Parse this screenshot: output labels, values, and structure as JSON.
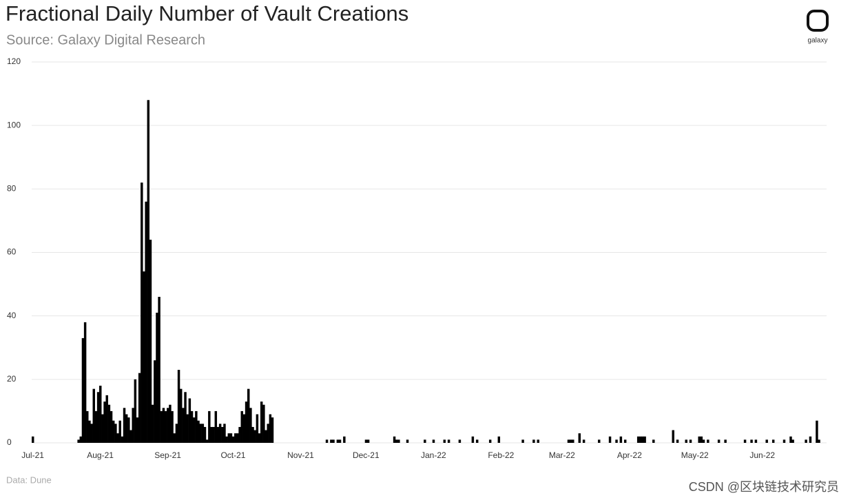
{
  "chart_data": {
    "type": "bar",
    "title": "Fractional Daily Number of Vault Creations",
    "subtitle": "Source: Galaxy Digital Research",
    "logo": "galaxy",
    "note": "Data: Dune",
    "watermark": "CSDN @区块链技术研究员",
    "color": "#000000",
    "grid": true,
    "ylim": [
      0,
      120
    ],
    "yticks": [
      0,
      20,
      40,
      60,
      80,
      100,
      120
    ],
    "categories": [
      "Jul-21",
      null,
      null,
      null,
      null,
      null,
      null,
      null,
      null,
      null,
      null,
      null,
      null,
      null,
      null,
      null,
      null,
      null,
      null,
      null,
      null,
      null,
      null,
      null,
      null,
      null,
      null,
      null,
      null,
      null,
      null,
      "Aug-21",
      null,
      null,
      null,
      null,
      null,
      null,
      null,
      null,
      null,
      null,
      null,
      null,
      null,
      null,
      null,
      null,
      null,
      null,
      null,
      null,
      null,
      null,
      null,
      null,
      null,
      null,
      null,
      null,
      null,
      null,
      "Sep-21",
      null,
      null,
      null,
      null,
      null,
      null,
      null,
      null,
      null,
      null,
      null,
      null,
      null,
      null,
      null,
      null,
      null,
      null,
      null,
      null,
      null,
      null,
      null,
      null,
      null,
      null,
      null,
      null,
      null,
      "Oct-21",
      null,
      null,
      null,
      null,
      null,
      null,
      null,
      null,
      null,
      null,
      null,
      null,
      null,
      null,
      null,
      null,
      null,
      null,
      null,
      null,
      null,
      null,
      null,
      null,
      null,
      null,
      null,
      null,
      null,
      null,
      "Nov-21",
      null,
      null,
      null,
      null,
      null,
      null,
      null,
      null,
      null,
      null,
      null,
      null,
      null,
      null,
      null,
      null,
      null,
      null,
      null,
      null,
      null,
      null,
      null,
      null,
      null,
      null,
      null,
      null,
      null,
      "Dec-21",
      null,
      null,
      null,
      null,
      null,
      null,
      null,
      null,
      null,
      null,
      null,
      null,
      null,
      null,
      null,
      null,
      null,
      null,
      null,
      null,
      null,
      null,
      null,
      null,
      null,
      null,
      null,
      null,
      null,
      null,
      "Jan-22",
      null,
      null,
      null,
      null,
      null,
      null,
      null,
      null,
      null,
      null,
      null,
      null,
      null,
      null,
      null,
      null,
      null,
      null,
      null,
      null,
      null,
      null,
      null,
      null,
      null,
      null,
      null,
      null,
      null,
      null,
      "Feb-22",
      null,
      null,
      null,
      null,
      null,
      null,
      null,
      null,
      null,
      null,
      null,
      null,
      null,
      null,
      null,
      null,
      null,
      null,
      null,
      null,
      null,
      null,
      null,
      null,
      null,
      null,
      null,
      "Mar-22",
      null,
      null,
      null,
      null,
      null,
      null,
      null,
      null,
      null,
      null,
      null,
      null,
      null,
      null,
      null,
      null,
      null,
      null,
      null,
      null,
      null,
      null,
      null,
      null,
      null,
      null,
      null,
      null,
      null,
      null,
      "Apr-22",
      null,
      null,
      null,
      null,
      null,
      null,
      null,
      null,
      null,
      null,
      null,
      null,
      null,
      null,
      null,
      null,
      null,
      null,
      null,
      null,
      null,
      null,
      null,
      null,
      null,
      null,
      null,
      null,
      null,
      "May-22",
      null,
      null,
      null,
      null,
      null,
      null,
      null,
      null,
      null,
      null,
      null,
      null,
      null,
      null,
      null,
      null,
      null,
      null,
      null,
      null,
      null,
      null,
      null,
      null,
      null,
      null,
      null,
      null,
      null,
      null,
      "Jun-22",
      null,
      null,
      null,
      null,
      null,
      null,
      null,
      null,
      null,
      null,
      null,
      null,
      null,
      null,
      null,
      null,
      null,
      null,
      null,
      null,
      null,
      null,
      null,
      null,
      null,
      null,
      null,
      null,
      null
    ],
    "values": [
      2,
      0,
      0,
      0,
      0,
      0,
      0,
      0,
      0,
      0,
      0,
      0,
      0,
      0,
      0,
      0,
      0,
      0,
      0,
      0,
      0,
      1,
      2,
      33,
      38,
      10,
      7,
      6,
      17,
      10,
      16,
      18,
      9,
      13,
      15,
      12,
      10,
      7,
      6,
      3,
      7,
      2,
      11,
      9,
      8,
      4,
      11,
      20,
      8,
      22,
      82,
      54,
      76,
      108,
      64,
      12,
      26,
      41,
      46,
      10,
      11,
      10,
      11,
      12,
      10,
      3,
      6,
      23,
      17,
      11,
      16,
      9,
      14,
      10,
      8,
      10,
      7,
      6,
      6,
      5,
      1,
      10,
      5,
      5,
      10,
      5,
      6,
      5,
      6,
      2,
      3,
      3,
      2,
      3,
      3,
      5,
      10,
      9,
      13,
      17,
      11,
      5,
      4,
      9,
      3,
      13,
      12,
      4,
      6,
      9,
      8,
      0,
      0,
      0,
      0,
      0,
      0,
      0,
      0,
      0,
      0,
      0,
      0,
      0,
      0,
      0,
      0,
      0,
      0,
      0,
      0,
      0,
      0,
      0,
      0,
      1,
      0,
      1,
      1,
      0,
      1,
      1,
      0,
      2,
      0,
      0,
      0,
      0,
      0,
      0,
      0,
      0,
      0,
      1,
      1,
      0,
      0,
      0,
      0,
      0,
      0,
      0,
      0,
      0,
      0,
      0,
      2,
      1,
      1,
      0,
      0,
      0,
      1,
      0,
      0,
      0,
      0,
      0,
      0,
      0,
      1,
      0,
      0,
      0,
      1,
      0,
      0,
      0,
      0,
      1,
      0,
      1,
      0,
      0,
      0,
      0,
      1,
      0,
      0,
      0,
      0,
      0,
      2,
      0,
      1,
      0,
      0,
      0,
      0,
      0,
      1,
      0,
      0,
      0,
      2,
      0,
      0,
      0,
      0,
      0,
      0,
      0,
      0,
      0,
      0,
      1,
      0,
      0,
      0,
      0,
      1,
      0,
      1,
      0,
      0,
      0,
      0,
      0,
      0,
      0,
      0,
      0,
      0,
      0,
      0,
      0,
      1,
      1,
      1,
      0,
      0,
      3,
      0,
      1,
      0,
      0,
      0,
      0,
      0,
      0,
      1,
      0,
      0,
      0,
      0,
      2,
      0,
      0,
      1,
      0,
      2,
      0,
      1,
      0,
      0,
      0,
      0,
      0,
      2,
      2,
      2,
      2,
      0,
      0,
      0,
      1,
      0,
      0,
      0,
      0,
      0,
      0,
      0,
      0,
      4,
      0,
      1,
      0,
      0,
      0,
      1,
      0,
      1,
      0,
      0,
      0,
      2,
      2,
      1,
      0,
      1,
      0,
      0,
      0,
      0,
      1,
      0,
      0,
      1,
      0,
      0,
      0,
      0,
      0,
      0,
      0,
      0,
      1,
      0,
      0,
      1,
      0,
      1,
      0,
      0,
      0,
      0,
      1,
      0,
      0,
      1,
      0,
      0,
      0,
      0,
      1,
      0,
      0,
      2,
      1,
      0,
      0,
      0,
      0,
      0,
      1,
      0,
      2,
      0,
      0,
      7,
      1,
      0,
      0,
      0
    ]
  }
}
